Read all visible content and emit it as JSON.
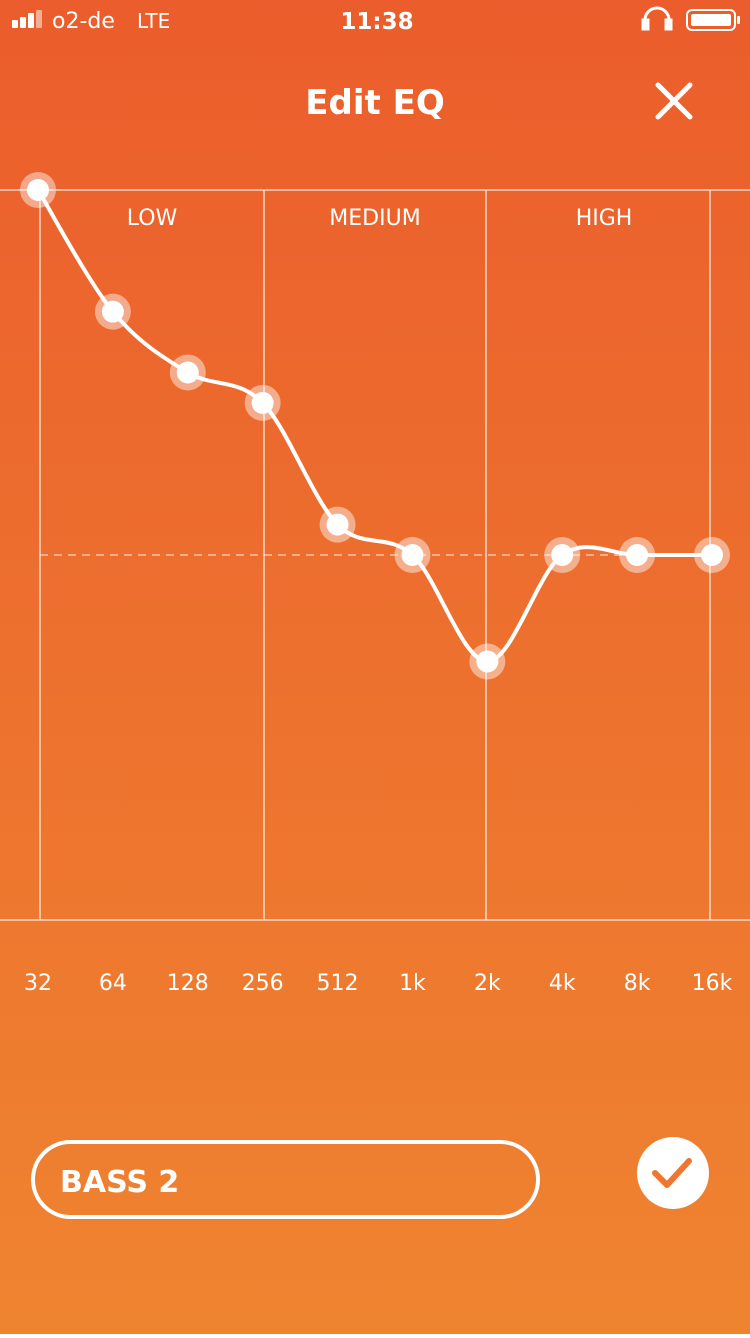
{
  "status_bar": {
    "carrier": "o2-de",
    "network": "LTE",
    "time": "11:38"
  },
  "header": {
    "title": "Edit EQ"
  },
  "chart_data": {
    "type": "line",
    "sections": [
      "LOW",
      "MEDIUM",
      "HIGH"
    ],
    "categories": [
      "32",
      "64",
      "128",
      "256",
      "512",
      "1k",
      "2k",
      "4k",
      "8k",
      "16k"
    ],
    "values": [
      12,
      8,
      6,
      5,
      1,
      0,
      -3.5,
      0,
      0,
      0
    ],
    "ylim": [
      -12,
      12
    ],
    "color": "#ffffff"
  },
  "preset": {
    "name": "BASS 2"
  }
}
